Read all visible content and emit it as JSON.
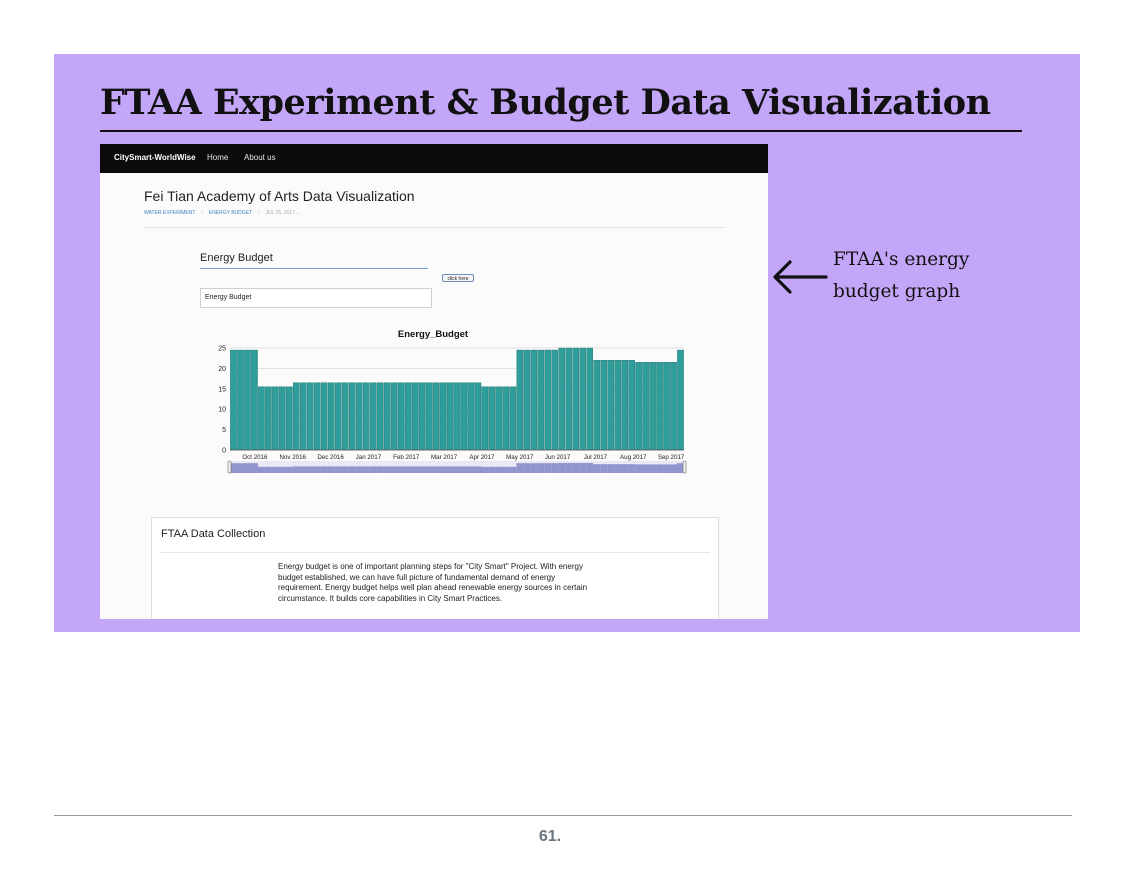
{
  "slide": {
    "title": "FTAA Experiment & Budget Data Visualization",
    "annotation": "FTAA's energy budget graph",
    "page_number": "61."
  },
  "app": {
    "brand": "CitySmart-WorldWise",
    "nav": [
      "Home",
      "About us"
    ],
    "page_title": "Fei Tian Academy of Arts Data Visualization",
    "breadcrumbs": [
      "WATER EXPERIMENT",
      "ENERGY BUDGET",
      "JUL 25, 2017 ..."
    ],
    "select_label": "Energy Budget",
    "button_label": "click here",
    "input_value": "Energy Budget",
    "panel": {
      "heading": "FTAA Data Collection",
      "text": "Energy budget is one of important planning steps for \"City Smart\" Project. With energy budget established, we can have full picture of fundamental demand of energy requirement. Energy budget helps well plan ahead renewable energy sources in certain circumstance. It builds core capabilities in City Smart Practices."
    }
  },
  "chart_data": {
    "type": "bar",
    "title": "Energy_Budget",
    "xlabel": "",
    "ylabel": "",
    "ylim": [
      0,
      25
    ],
    "yticks": [
      0,
      5,
      10,
      15,
      20,
      25
    ],
    "xticks": [
      "Oct 2016",
      "Nov 2016",
      "Dec 2016",
      "Jan 2017",
      "Feb 2017",
      "Mar 2017",
      "Apr 2017",
      "May 2017",
      "Jun 2017",
      "Jul 2017",
      "Aug 2017",
      "Sep 2017"
    ],
    "values": [
      24.5,
      24.5,
      24.5,
      24.5,
      15.5,
      15.5,
      15.5,
      15.5,
      15.5,
      16.5,
      16.5,
      16.5,
      16.5,
      16.5,
      16.5,
      16.5,
      16.5,
      16.5,
      16.5,
      16.5,
      16.5,
      16.5,
      16.5,
      16.5,
      16.5,
      16.5,
      16.5,
      16.5,
      16.5,
      16.5,
      16.5,
      16.5,
      16.5,
      16.5,
      16.5,
      16.5,
      15.5,
      15.5,
      15.5,
      15.5,
      15.5,
      24.5,
      24.5,
      24.5,
      24.5,
      24.5,
      24.5,
      25,
      25,
      25,
      25,
      25,
      22,
      22,
      22,
      22,
      22,
      22,
      21.5,
      21.5,
      21.5,
      21.5,
      21.5,
      21.5,
      24.5
    ],
    "grid": true,
    "bar_color": "#2f9e9b",
    "navigator_color": "#7c81c4"
  }
}
